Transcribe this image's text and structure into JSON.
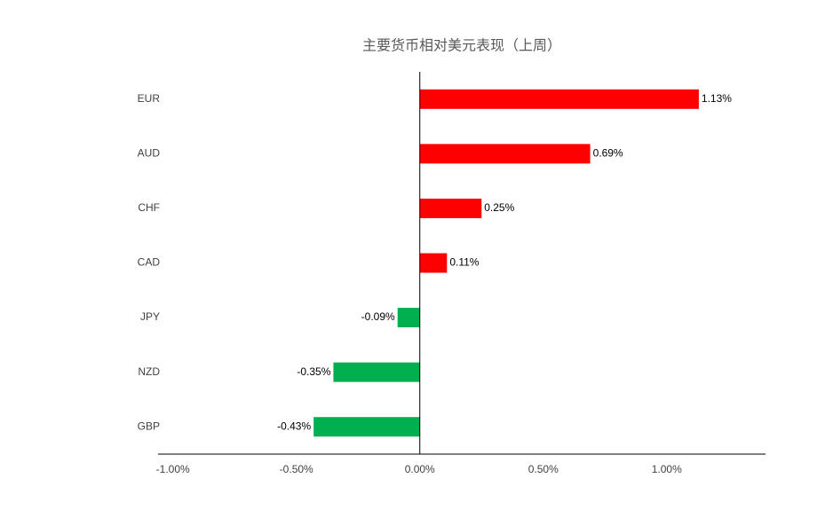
{
  "chart_data": {
    "type": "barh",
    "title": "主要货币相对美元表现（上周）",
    "categories": [
      "EUR",
      "AUD",
      "CHF",
      "CAD",
      "JPY",
      "NZD",
      "GBP"
    ],
    "values": [
      1.13,
      0.69,
      0.25,
      0.11,
      -0.09,
      -0.35,
      -0.43
    ],
    "value_labels": [
      "1.13%",
      "0.69%",
      "0.25%",
      "0.11%",
      "-0.09%",
      "-0.35%",
      "-0.43%"
    ],
    "positive_color": "#ff0000",
    "negative_color": "#00b050",
    "xlim": [
      -1.06,
      1.4
    ],
    "xticks": [
      {
        "value": -1,
        "label": "-1.00%"
      },
      {
        "value": -0.5,
        "label": "-0.50%"
      },
      {
        "value": 0,
        "label": "0.00%"
      },
      {
        "value": 0.5,
        "label": "0.50%"
      },
      {
        "value": 1,
        "label": "1.00%"
      }
    ],
    "grid": false
  }
}
